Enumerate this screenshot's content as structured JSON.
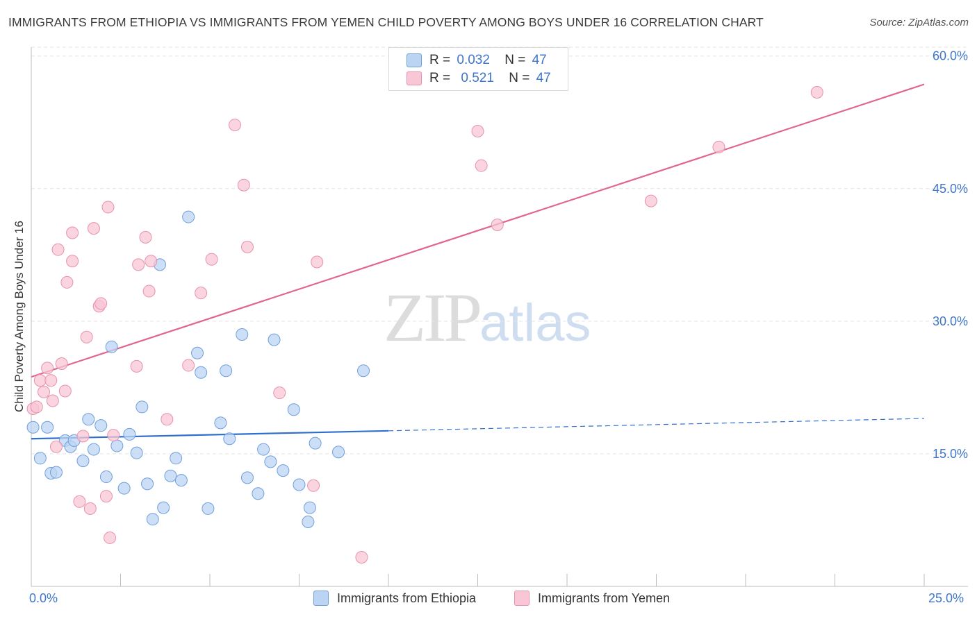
{
  "title": "IMMIGRANTS FROM ETHIOPIA VS IMMIGRANTS FROM YEMEN CHILD POVERTY AMONG BOYS UNDER 16 CORRELATION CHART",
  "source": "Source: ZipAtlas.com",
  "watermark": {
    "zip": "ZIP",
    "atlas": "atlas"
  },
  "legend": {
    "rows": [
      {
        "r_label": "R =",
        "r_value": "0.032",
        "n_label": "N =",
        "n_value": "47"
      },
      {
        "r_label": "R =",
        "r_value": "0.521",
        "n_label": "N =",
        "n_value": "47"
      }
    ]
  },
  "colors": {
    "ethiopia_fill": "#bcd4f3",
    "ethiopia_stroke": "#6f9fdc",
    "ethiopia_line": "#2f6fce",
    "yemen_fill": "#f8c6d4",
    "yemen_stroke": "#e891ae",
    "yemen_line": "#e0668f",
    "tick_text": "#3f76c9",
    "grid": "#e3e3e3"
  },
  "chart_data": {
    "type": "scatter",
    "title": "IMMIGRANTS FROM ETHIOPIA VS IMMIGRANTS FROM YEMEN CHILD POVERTY AMONG BOYS UNDER 16 CORRELATION CHART",
    "xlabel": "",
    "ylabel": "Child Poverty Among Boys Under 16",
    "xlim": [
      0,
      25
    ],
    "ylim": [
      0,
      61
    ],
    "x_tick_labels": [
      "0.0%",
      "25.0%"
    ],
    "y_ticks": [
      15,
      30,
      45,
      60
    ],
    "y_tick_labels": [
      "15.0%",
      "30.0%",
      "45.0%",
      "60.0%"
    ],
    "grid": true,
    "legend_position": "top-center",
    "series": [
      {
        "name": "Immigrants from Ethiopia",
        "r": 0.032,
        "n": 47,
        "trend": {
          "x_start": 0,
          "y_start": 16.7,
          "x_solid_end": 10.0,
          "y_solid_end": 17.6,
          "x_end": 25.0,
          "y_end": 19.0
        },
        "points": [
          [
            0.05,
            18.0
          ],
          [
            0.45,
            18.0
          ],
          [
            0.25,
            14.5
          ],
          [
            0.55,
            12.8
          ],
          [
            0.7,
            12.9
          ],
          [
            0.95,
            16.5
          ],
          [
            1.1,
            15.8
          ],
          [
            1.2,
            16.5
          ],
          [
            1.45,
            14.2
          ],
          [
            1.6,
            18.9
          ],
          [
            1.75,
            15.5
          ],
          [
            1.95,
            18.2
          ],
          [
            2.1,
            12.4
          ],
          [
            2.25,
            27.1
          ],
          [
            2.4,
            15.9
          ],
          [
            2.6,
            11.1
          ],
          [
            2.75,
            17.2
          ],
          [
            2.95,
            15.1
          ],
          [
            3.1,
            20.3
          ],
          [
            3.25,
            11.6
          ],
          [
            3.4,
            7.6
          ],
          [
            3.6,
            36.4
          ],
          [
            3.7,
            8.9
          ],
          [
            3.9,
            12.5
          ],
          [
            4.05,
            14.5
          ],
          [
            4.2,
            12.0
          ],
          [
            4.4,
            41.8
          ],
          [
            4.65,
            26.4
          ],
          [
            4.75,
            24.2
          ],
          [
            4.95,
            8.8
          ],
          [
            5.3,
            18.5
          ],
          [
            5.45,
            24.4
          ],
          [
            5.55,
            16.7
          ],
          [
            5.9,
            28.5
          ],
          [
            6.05,
            12.3
          ],
          [
            6.35,
            10.5
          ],
          [
            6.5,
            15.5
          ],
          [
            6.7,
            14.1
          ],
          [
            6.8,
            27.9
          ],
          [
            7.05,
            13.1
          ],
          [
            7.35,
            20.0
          ],
          [
            7.5,
            11.5
          ],
          [
            7.8,
            8.9
          ],
          [
            7.95,
            16.2
          ],
          [
            7.75,
            7.3
          ],
          [
            8.6,
            15.2
          ],
          [
            9.3,
            24.4
          ]
        ]
      },
      {
        "name": "Immigrants from Yemen",
        "r": 0.521,
        "n": 47,
        "trend": {
          "x_start": 0,
          "y_start": 23.7,
          "x_solid_end": 25.0,
          "y_solid_end": 56.8,
          "x_end": 25.0,
          "y_end": 56.8
        },
        "points": [
          [
            0.05,
            20.1
          ],
          [
            0.15,
            20.3
          ],
          [
            0.25,
            23.3
          ],
          [
            0.35,
            22.0
          ],
          [
            0.45,
            24.7
          ],
          [
            0.55,
            23.3
          ],
          [
            0.6,
            21.0
          ],
          [
            0.7,
            15.8
          ],
          [
            0.75,
            38.1
          ],
          [
            0.85,
            25.2
          ],
          [
            0.95,
            22.1
          ],
          [
            1.0,
            34.4
          ],
          [
            1.15,
            40.0
          ],
          [
            1.15,
            36.8
          ],
          [
            1.35,
            9.6
          ],
          [
            1.45,
            17.0
          ],
          [
            1.55,
            28.2
          ],
          [
            1.65,
            8.8
          ],
          [
            1.75,
            40.5
          ],
          [
            1.9,
            31.7
          ],
          [
            1.95,
            32.0
          ],
          [
            2.1,
            10.2
          ],
          [
            2.15,
            42.9
          ],
          [
            2.2,
            5.5
          ],
          [
            2.3,
            17.1
          ],
          [
            2.95,
            24.9
          ],
          [
            3.0,
            36.4
          ],
          [
            3.2,
            39.5
          ],
          [
            3.3,
            33.4
          ],
          [
            3.35,
            36.8
          ],
          [
            3.8,
            18.9
          ],
          [
            4.4,
            25.0
          ],
          [
            4.75,
            33.2
          ],
          [
            5.05,
            37.0
          ],
          [
            5.7,
            52.2
          ],
          [
            5.95,
            45.4
          ],
          [
            6.05,
            38.4
          ],
          [
            6.95,
            21.9
          ],
          [
            7.9,
            11.4
          ],
          [
            8.0,
            36.7
          ],
          [
            9.25,
            3.3
          ],
          [
            12.5,
            51.5
          ],
          [
            12.6,
            47.6
          ],
          [
            13.05,
            40.9
          ],
          [
            17.35,
            43.6
          ],
          [
            19.25,
            49.7
          ],
          [
            22.0,
            55.9
          ]
        ]
      }
    ]
  }
}
